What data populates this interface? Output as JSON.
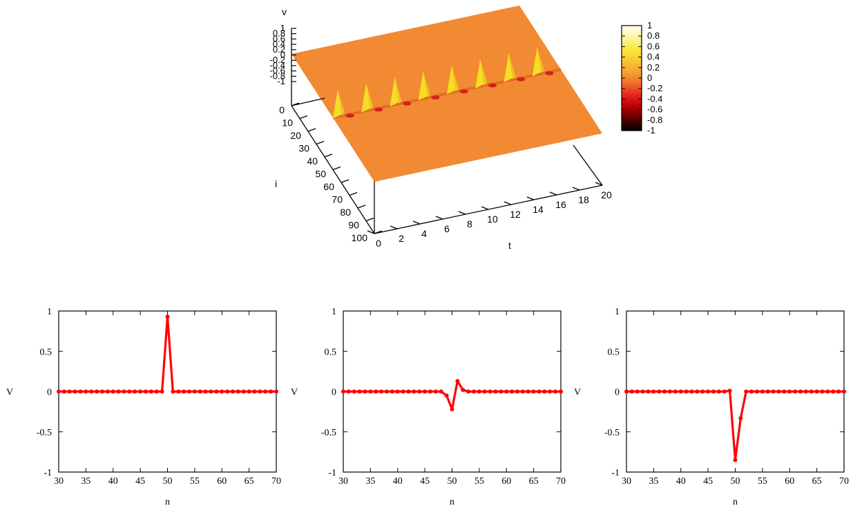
{
  "colors": {
    "surface": "#f28a33",
    "surface_dark": "#e06f20",
    "peak": "#f6dd25",
    "trough": "#d81f1f",
    "line": "#ff0000",
    "axis": "#000000"
  },
  "chart_data": [
    {
      "type": "surface3d",
      "zlabel": "v",
      "ylabel": "i",
      "xlabel": "t",
      "x_ticks": [
        "0",
        "2",
        "4",
        "6",
        "8",
        "10",
        "12",
        "14",
        "16",
        "18",
        "20"
      ],
      "y_ticks": [
        "0",
        "10",
        "20",
        "30",
        "40",
        "50",
        "60",
        "70",
        "80",
        "90",
        "100"
      ],
      "z_ticks": [
        "1",
        "0.8",
        "0.6",
        "0.4",
        "0.2",
        "0",
        "-0.2",
        "-0.4",
        "-0.6",
        "-0.8",
        "-1"
      ],
      "xlim": [
        0,
        20
      ],
      "ylim": [
        0,
        100
      ],
      "zlim": [
        -1,
        1
      ],
      "colorbar": {
        "range": [
          -1,
          1
        ],
        "ticks": [
          "1",
          "0.8",
          "0.6",
          "0.4",
          "0.2",
          "0",
          "-0.2",
          "-0.4",
          "-0.6",
          "-0.8",
          "-1"
        ],
        "colormap": [
          "#000000",
          "#5a0000",
          "#b00000",
          "#e82020",
          "#f26a2a",
          "#f5a030",
          "#f7c830",
          "#f8e840",
          "#fbf6a0",
          "#fffff0"
        ]
      },
      "pulse_site_i": 50,
      "pulse_times": [
        0,
        2.5,
        5,
        7.5,
        10,
        12.5,
        15,
        17.5
      ]
    },
    {
      "type": "line",
      "xlabel": "n",
      "ylabel": "V",
      "xlim": [
        30,
        70
      ],
      "ylim": [
        -1,
        1
      ],
      "x_ticks": [
        "30",
        "35",
        "40",
        "45",
        "50",
        "55",
        "60",
        "65",
        "70"
      ],
      "y_ticks": [
        "1",
        "0.5",
        "0",
        "-0.5",
        "-1"
      ],
      "points": [
        [
          49,
          0
        ],
        [
          50,
          0.93
        ],
        [
          51,
          0
        ]
      ]
    },
    {
      "type": "line",
      "xlabel": "n",
      "ylabel": "V",
      "xlim": [
        30,
        70
      ],
      "ylim": [
        -1,
        1
      ],
      "x_ticks": [
        "30",
        "35",
        "40",
        "45",
        "50",
        "55",
        "60",
        "65",
        "70"
      ],
      "y_ticks": [
        "1",
        "0.5",
        "0",
        "-0.5",
        "-1"
      ],
      "points": [
        [
          48,
          0
        ],
        [
          49,
          -0.05
        ],
        [
          50,
          -0.22
        ],
        [
          51,
          0.13
        ],
        [
          52,
          0.02
        ],
        [
          53,
          0
        ]
      ]
    },
    {
      "type": "line",
      "xlabel": "n",
      "ylabel": "V",
      "xlim": [
        30,
        70
      ],
      "ylim": [
        -1,
        1
      ],
      "x_ticks": [
        "30",
        "35",
        "40",
        "45",
        "50",
        "55",
        "60",
        "65",
        "70"
      ],
      "y_ticks": [
        "1",
        "0.5",
        "0",
        "-0.5",
        "-1"
      ],
      "points": [
        [
          49,
          0.01
        ],
        [
          50,
          -0.85
        ],
        [
          51,
          -0.33
        ],
        [
          52,
          0
        ]
      ]
    }
  ]
}
